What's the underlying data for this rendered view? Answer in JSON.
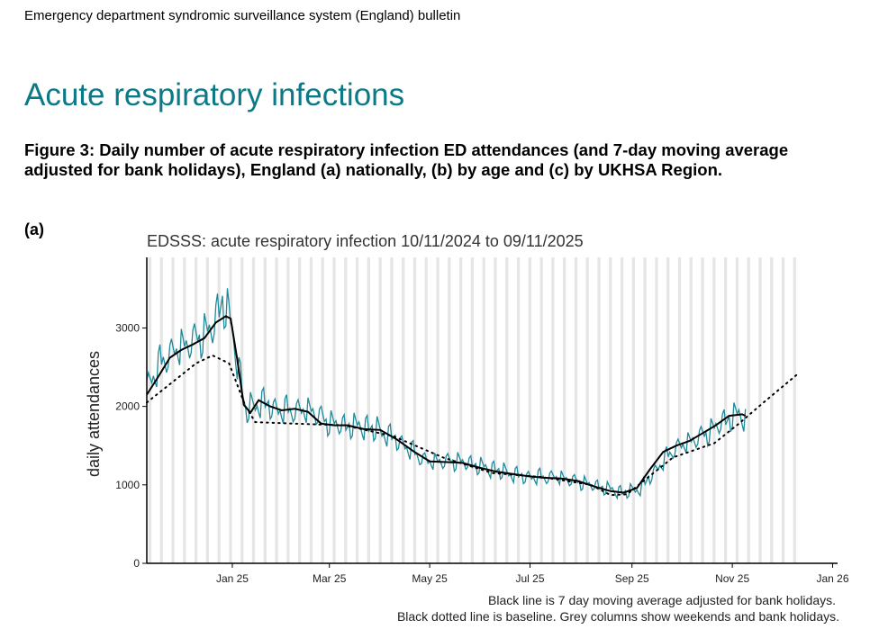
{
  "bulletin": {
    "title": "Emergency department syndromic surveillance system (England) bulletin"
  },
  "section": {
    "heading": "Acute respiratory infections"
  },
  "figure": {
    "caption": "Figure 3: Daily number of acute respiratory infection ED attendances (and 7-day moving average adjusted for bank holidays), England (a) nationally, (b) by age and (c) by UKHSA Region.",
    "panel_label": "(a)"
  },
  "colors": {
    "daily": "#1f8a9a",
    "average": "#000000",
    "baseline": "#000000",
    "weekend": "#e6e6e6"
  },
  "chart_data": {
    "type": "line",
    "title": "EDSSS: acute respiratory infection 10/11/2024 to 09/11/2025",
    "ylabel": "daily attendances",
    "xlabel": "",
    "xlim": [
      0,
      420
    ],
    "ylim": [
      0,
      3900
    ],
    "x_ticks": [
      {
        "label": "Jan 25",
        "day": 52
      },
      {
        "label": "Mar 25",
        "day": 111
      },
      {
        "label": "May 25",
        "day": 172
      },
      {
        "label": "Jul 25",
        "day": 233
      },
      {
        "label": "Sep 25",
        "day": 295
      },
      {
        "label": "Nov 25",
        "day": 356
      },
      {
        "label": "Jan 26",
        "day": 417
      }
    ],
    "y_ticks": [
      0,
      1000,
      2000,
      3000
    ],
    "weekend_columns_end_day": 394,
    "series": [
      {
        "name": "Daily attendances",
        "style": "daily",
        "anchors": [
          [
            0,
            2250
          ],
          [
            10,
            2600
          ],
          [
            20,
            2750
          ],
          [
            30,
            2850
          ],
          [
            40,
            3000
          ],
          [
            46,
            3350
          ],
          [
            50,
            3150
          ],
          [
            55,
            2600
          ],
          [
            60,
            1950
          ],
          [
            70,
            2050
          ],
          [
            80,
            1950
          ],
          [
            90,
            1950
          ],
          [
            100,
            1950
          ],
          [
            110,
            1800
          ],
          [
            120,
            1750
          ],
          [
            130,
            1750
          ],
          [
            140,
            1700
          ],
          [
            150,
            1600
          ],
          [
            160,
            1450
          ],
          [
            170,
            1300
          ],
          [
            180,
            1300
          ],
          [
            190,
            1300
          ],
          [
            200,
            1250
          ],
          [
            210,
            1200
          ],
          [
            220,
            1150
          ],
          [
            230,
            1100
          ],
          [
            240,
            1100
          ],
          [
            250,
            1100
          ],
          [
            260,
            1050
          ],
          [
            270,
            1000
          ],
          [
            280,
            950
          ],
          [
            290,
            900
          ],
          [
            300,
            950
          ],
          [
            310,
            1200
          ],
          [
            320,
            1450
          ],
          [
            330,
            1550
          ],
          [
            340,
            1650
          ],
          [
            350,
            1800
          ],
          [
            360,
            1900
          ],
          [
            364,
            1850
          ]
        ]
      },
      {
        "name": "7 day moving average adjusted for bank holidays",
        "style": "average",
        "anchors": [
          [
            0,
            2150
          ],
          [
            7,
            2380
          ],
          [
            14,
            2620
          ],
          [
            21,
            2720
          ],
          [
            28,
            2790
          ],
          [
            35,
            2870
          ],
          [
            42,
            3070
          ],
          [
            48,
            3150
          ],
          [
            51,
            3120
          ],
          [
            55,
            2600
          ],
          [
            59,
            2020
          ],
          [
            63,
            1920
          ],
          [
            68,
            2080
          ],
          [
            75,
            2000
          ],
          [
            82,
            1950
          ],
          [
            90,
            1970
          ],
          [
            98,
            1930
          ],
          [
            106,
            1780
          ],
          [
            114,
            1760
          ],
          [
            122,
            1760
          ],
          [
            132,
            1710
          ],
          [
            142,
            1700
          ],
          [
            152,
            1580
          ],
          [
            162,
            1430
          ],
          [
            172,
            1300
          ],
          [
            182,
            1290
          ],
          [
            192,
            1280
          ],
          [
            202,
            1220
          ],
          [
            212,
            1170
          ],
          [
            222,
            1140
          ],
          [
            232,
            1110
          ],
          [
            242,
            1090
          ],
          [
            252,
            1080
          ],
          [
            262,
            1050
          ],
          [
            272,
            980
          ],
          [
            282,
            920
          ],
          [
            290,
            900
          ],
          [
            298,
            960
          ],
          [
            306,
            1200
          ],
          [
            314,
            1420
          ],
          [
            322,
            1500
          ],
          [
            330,
            1560
          ],
          [
            338,
            1660
          ],
          [
            346,
            1760
          ],
          [
            354,
            1880
          ],
          [
            362,
            1900
          ],
          [
            364,
            1880
          ]
        ]
      },
      {
        "name": "Baseline",
        "style": "baseline",
        "anchors": [
          [
            0,
            2050
          ],
          [
            15,
            2300
          ],
          [
            30,
            2550
          ],
          [
            40,
            2650
          ],
          [
            50,
            2550
          ],
          [
            60,
            2000
          ],
          [
            66,
            1800
          ],
          [
            90,
            1780
          ],
          [
            120,
            1760
          ],
          [
            150,
            1620
          ],
          [
            180,
            1350
          ],
          [
            210,
            1150
          ],
          [
            240,
            1100
          ],
          [
            270,
            1000
          ],
          [
            282,
            870
          ],
          [
            292,
            880
          ],
          [
            305,
            1100
          ],
          [
            320,
            1350
          ],
          [
            345,
            1530
          ],
          [
            360,
            1780
          ],
          [
            375,
            2050
          ],
          [
            395,
            2400
          ]
        ]
      }
    ]
  },
  "notes": {
    "line1": "Black line is 7 day moving average adjusted for bank holidays.",
    "line2": "Black dotted line is baseline. Grey columns show weekends and bank holidays."
  }
}
